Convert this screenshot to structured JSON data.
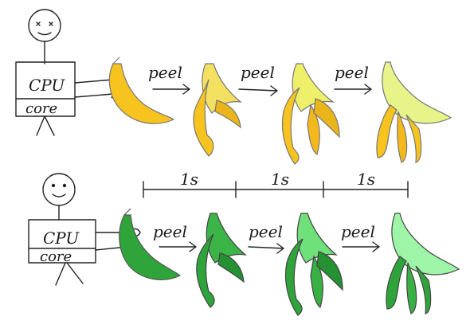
{
  "colors": {
    "ink": "#222222",
    "yellow_fill": "#f7c31f",
    "yellow_dark": "#e0a814",
    "yellow_light": "#f4ec6a",
    "yellow_pale": "#e6f48a",
    "green_fill": "#2ea43a",
    "green_dark": "#1f7f2b",
    "green_light": "#6fe07a",
    "green_pale": "#9ef5a8"
  },
  "rows": [
    {
      "cpu_label": "CPU",
      "core_label": "core",
      "arrows": [
        "peel",
        "peel",
        "peel"
      ]
    },
    {
      "cpu_label": "CPU",
      "core_label": "core",
      "arrows": [
        "peel",
        "peel",
        "peel"
      ]
    }
  ],
  "timeline": {
    "segments": [
      "1s",
      "1s",
      "1s"
    ]
  }
}
